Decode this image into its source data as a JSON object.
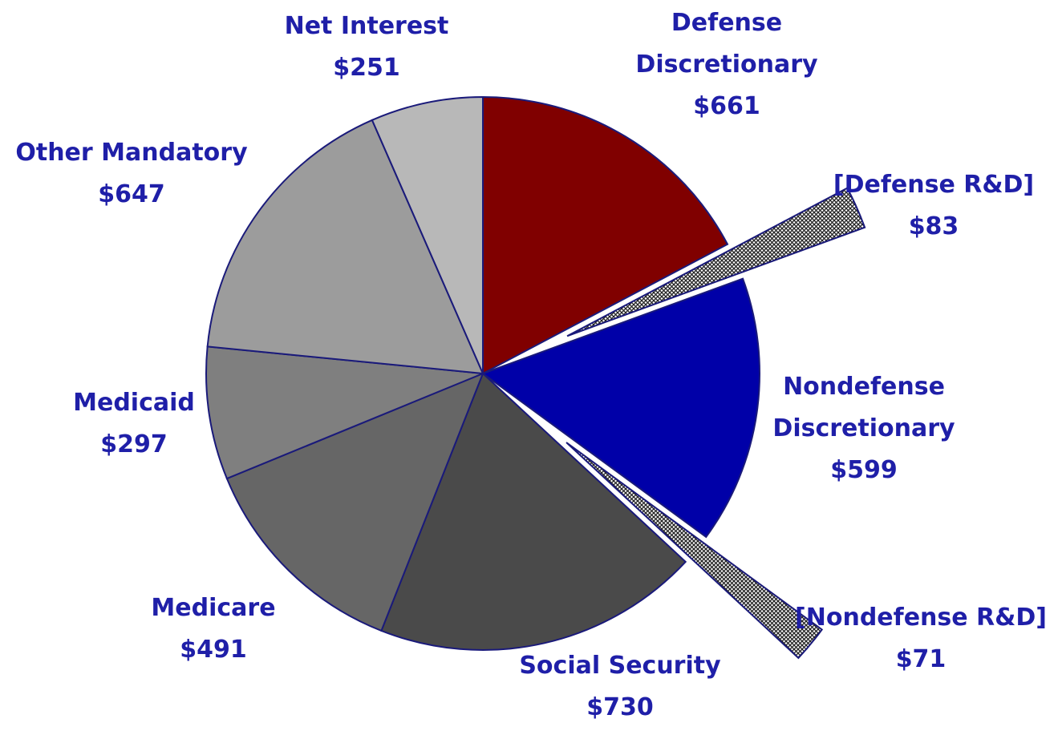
{
  "chart_data": {
    "type": "pie",
    "title": "",
    "slices": [
      {
        "key": "defense",
        "label_lines": [
          "Defense",
          "Discretionary"
        ],
        "value_label": "$661",
        "value": 661,
        "color": "#800000"
      },
      {
        "key": "defense_rd",
        "label_lines": [
          "[Defense R&D]"
        ],
        "value_label": "$83",
        "value": 83,
        "pattern": "crosshatch",
        "exploded": true
      },
      {
        "key": "nondefense",
        "label_lines": [
          "Nondefense",
          "Discretionary"
        ],
        "value_label": "$599",
        "value": 599,
        "color": "#0000a8"
      },
      {
        "key": "nondefense_rd",
        "label_lines": [
          "[Nondefense R&D]"
        ],
        "value_label": "$71",
        "value": 71,
        "pattern": "crosshatch",
        "exploded": true
      },
      {
        "key": "social_security",
        "label_lines": [
          "Social Security"
        ],
        "value_label": "$730",
        "value": 730,
        "color": "#4a4a4a"
      },
      {
        "key": "medicare",
        "label_lines": [
          "Medicare"
        ],
        "value_label": "$491",
        "value": 491,
        "color": "#666666"
      },
      {
        "key": "medicaid",
        "label_lines": [
          "Medicaid"
        ],
        "value_label": "$297",
        "value": 297,
        "color": "#7f7f7f"
      },
      {
        "key": "other_mandatory",
        "label_lines": [
          "Other Mandatory"
        ],
        "value_label": "$647",
        "value": 647,
        "color": "#9c9c9c"
      },
      {
        "key": "net_interest",
        "label_lines": [
          "Net Interest"
        ],
        "value_label": "$251",
        "value": 251,
        "color": "#b8b8b8"
      }
    ],
    "label_color": "#1f1fa8",
    "edge_color": "#1a1a7a"
  }
}
